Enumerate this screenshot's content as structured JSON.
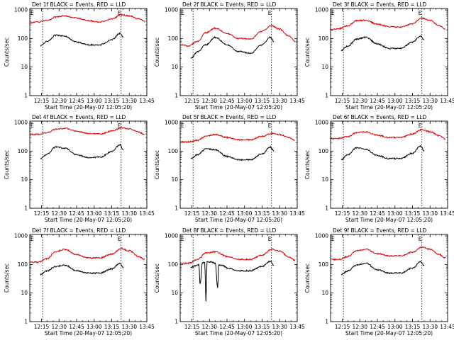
{
  "window": {
    "width": 640,
    "height": 480,
    "background": "#ffffff"
  },
  "colors": {
    "events": "#000000",
    "lld": "#dd0000",
    "axis": "#000000"
  },
  "shared": {
    "xlabel": "Start Time (20-May-07 12:05:20)",
    "ylabel": "Counts/sec",
    "x_ticks": [
      "12:15",
      "12:30",
      "12:45",
      "13:00",
      "13:15",
      "13:30",
      "13:45"
    ],
    "y_ticks": [
      "1",
      "10",
      "100",
      "1000"
    ],
    "x_range_minutes": [
      0,
      100
    ],
    "y_range_log10": [
      0,
      3.05
    ],
    "scale": "log",
    "marker_left": "E",
    "marker_right": "E"
  },
  "chart_data": [
    {
      "type": "line",
      "scale": "log",
      "title": "Det 1f BLACK = Events, RED = LLD",
      "ylabel": "Counts/sec",
      "xlabel": "Start Time (20-May-07 12:05:20)",
      "xticks": [
        "12:15",
        "12:30",
        "12:45",
        "13:00",
        "13:15",
        "13:30",
        "13:45"
      ],
      "yticks": [
        "1",
        "10",
        "100",
        "1000"
      ],
      "markers": {
        "left_label": "E",
        "right_label": "E",
        "dashed_lines_x": [
          "12:16",
          "13:23"
        ]
      },
      "series": [
        {
          "key": "lld",
          "color": "#dd0000",
          "x": [
            "12:05",
            "12:12",
            "12:20",
            "12:27",
            "12:35",
            "12:45",
            "12:55",
            "13:05",
            "13:15",
            "13:23",
            "13:30",
            "13:38",
            "13:43"
          ],
          "values": [
            350,
            380,
            430,
            560,
            620,
            520,
            420,
            380,
            480,
            680,
            620,
            480,
            400
          ]
        },
        {
          "key": "events",
          "color": "#000000",
          "x": [
            "12:14",
            "12:20",
            "12:27",
            "12:35",
            "12:45",
            "12:55",
            "13:05",
            "13:15",
            "13:22",
            "13:25"
          ],
          "values": [
            55,
            80,
            130,
            120,
            75,
            60,
            60,
            90,
            150,
            110
          ]
        }
      ]
    },
    {
      "type": "line",
      "scale": "log",
      "title": "Det 2f BLACK = Events, RED = LLD",
      "ylabel": "Counts/sec",
      "xlabel": "Start Time (20-May-07 12:05:20)",
      "xticks": [
        "12:15",
        "12:30",
        "12:45",
        "13:00",
        "13:15",
        "13:30",
        "13:45"
      ],
      "yticks": [
        "1",
        "10",
        "100",
        "1000"
      ],
      "markers": {
        "left_label": "E",
        "right_label": "E",
        "dashed_lines_x": [
          "12:16",
          "13:23"
        ]
      },
      "series": [
        {
          "key": "lld",
          "color": "#dd0000",
          "x": [
            "12:05",
            "12:12",
            "12:20",
            "12:27",
            "12:35",
            "12:45",
            "12:55",
            "13:05",
            "13:15",
            "13:23",
            "13:30",
            "13:38",
            "13:43"
          ],
          "values": [
            60,
            55,
            80,
            160,
            230,
            150,
            100,
            95,
            180,
            280,
            210,
            120,
            80
          ]
        },
        {
          "key": "events",
          "color": "#000000",
          "x": [
            "12:14",
            "12:20",
            "12:27",
            "12:35",
            "12:45",
            "12:55",
            "13:05",
            "13:15",
            "13:22",
            "13:25"
          ],
          "values": [
            20,
            35,
            60,
            110,
            60,
            35,
            30,
            60,
            110,
            80
          ]
        }
      ]
    },
    {
      "type": "line",
      "scale": "log",
      "title": "Det 3f BLACK = Events, RED = LLD",
      "ylabel": "Counts/sec",
      "xlabel": "Start Time (20-May-07 12:05:20)",
      "xticks": [
        "12:15",
        "12:30",
        "12:45",
        "13:00",
        "13:15",
        "13:30",
        "13:45"
      ],
      "yticks": [
        "1",
        "10",
        "100",
        "1000"
      ],
      "markers": {
        "left_label": "E",
        "right_label": "E",
        "dashed_lines_x": [
          "12:16",
          "13:23"
        ]
      },
      "series": [
        {
          "key": "lld",
          "color": "#dd0000",
          "x": [
            "12:05",
            "12:12",
            "12:20",
            "12:27",
            "12:35",
            "12:45",
            "12:55",
            "13:05",
            "13:15",
            "13:23",
            "13:30",
            "13:38",
            "13:43"
          ],
          "values": [
            200,
            220,
            280,
            420,
            430,
            320,
            260,
            250,
            330,
            520,
            430,
            280,
            210
          ]
        },
        {
          "key": "events",
          "color": "#000000",
          "x": [
            "12:14",
            "12:20",
            "12:27",
            "12:35",
            "12:45",
            "12:55",
            "13:05",
            "13:15",
            "13:22",
            "13:25"
          ],
          "values": [
            38,
            55,
            95,
            110,
            65,
            45,
            45,
            75,
            120,
            90
          ]
        }
      ]
    },
    {
      "type": "line",
      "scale": "log",
      "title": "Det 4f BLACK = Events, RED = LLD",
      "ylabel": "Counts/sec",
      "xlabel": "Start Time (20-May-07 12:05:20)",
      "xticks": [
        "12:15",
        "12:30",
        "12:45",
        "13:00",
        "13:15",
        "13:30",
        "13:45"
      ],
      "yticks": [
        "1",
        "10",
        "100",
        "1000"
      ],
      "markers": {
        "left_label": "E",
        "right_label": "E",
        "dashed_lines_x": [
          "12:16",
          "13:23"
        ]
      },
      "series": [
        {
          "key": "lld",
          "color": "#dd0000",
          "x": [
            "12:05",
            "12:12",
            "12:20",
            "12:27",
            "12:35",
            "12:45",
            "12:55",
            "13:05",
            "13:15",
            "13:23",
            "13:30",
            "13:38",
            "13:43"
          ],
          "values": [
            380,
            390,
            450,
            580,
            620,
            500,
            420,
            400,
            500,
            650,
            600,
            470,
            380
          ]
        },
        {
          "key": "events",
          "color": "#000000",
          "x": [
            "12:14",
            "12:20",
            "12:27",
            "12:35",
            "12:45",
            "12:55",
            "13:05",
            "13:15",
            "13:22",
            "13:25"
          ],
          "values": [
            55,
            80,
            140,
            125,
            75,
            60,
            62,
            95,
            170,
            110
          ]
        }
      ]
    },
    {
      "type": "line",
      "scale": "log",
      "title": "Det 5f BLACK = Events, RED = LLD",
      "ylabel": "Counts/sec",
      "xlabel": "Start Time (20-May-07 12:05:20)",
      "xticks": [
        "12:15",
        "12:30",
        "12:45",
        "13:00",
        "13:15",
        "13:30",
        "13:45"
      ],
      "yticks": [
        "1",
        "10",
        "100",
        "1000"
      ],
      "markers": {
        "left_label": "E",
        "right_label": "E",
        "dashed_lines_x": [
          "12:16",
          "13:23"
        ]
      },
      "series": [
        {
          "key": "lld",
          "color": "#dd0000",
          "x": [
            "12:05",
            "12:12",
            "12:20",
            "12:27",
            "12:35",
            "12:45",
            "12:55",
            "13:05",
            "13:15",
            "13:23",
            "13:30",
            "13:38",
            "13:43"
          ],
          "values": [
            210,
            210,
            240,
            330,
            380,
            300,
            250,
            250,
            330,
            420,
            380,
            300,
            240
          ]
        },
        {
          "key": "events",
          "color": "#000000",
          "x": [
            "12:14",
            "12:20",
            "12:27",
            "12:35",
            "12:45",
            "12:55",
            "13:05",
            "13:15",
            "13:22",
            "13:25"
          ],
          "values": [
            55,
            75,
            120,
            110,
            65,
            50,
            50,
            80,
            140,
            100
          ]
        }
      ]
    },
    {
      "type": "line",
      "scale": "log",
      "title": "Det 6f BLACK = Events, RED = LLD",
      "ylabel": "Counts/sec",
      "xlabel": "Start Time (20-May-07 12:05:20)",
      "xticks": [
        "12:15",
        "12:30",
        "12:45",
        "13:00",
        "13:15",
        "13:30",
        "13:45"
      ],
      "yticks": [
        "1",
        "10",
        "100",
        "1000"
      ],
      "markers": {
        "left_label": "E",
        "right_label": "E",
        "dashed_lines_x": [
          "12:16",
          "13:23"
        ]
      },
      "series": [
        {
          "key": "lld",
          "color": "#dd0000",
          "x": [
            "12:05",
            "12:12",
            "12:20",
            "12:27",
            "12:35",
            "12:45",
            "12:55",
            "13:05",
            "13:15",
            "13:23",
            "13:30",
            "13:38",
            "13:43"
          ],
          "values": [
            270,
            280,
            320,
            440,
            470,
            360,
            300,
            300,
            400,
            560,
            480,
            340,
            270
          ]
        },
        {
          "key": "events",
          "color": "#000000",
          "x": [
            "12:14",
            "12:20",
            "12:27",
            "12:35",
            "12:45",
            "12:55",
            "13:05",
            "13:15",
            "13:22",
            "13:25"
          ],
          "values": [
            50,
            75,
            130,
            115,
            70,
            55,
            55,
            85,
            150,
            100
          ]
        }
      ]
    },
    {
      "type": "line",
      "scale": "log",
      "title": "Det 7f BLACK = Events, RED = LLD",
      "ylabel": "Counts/sec",
      "xlabel": "Start Time (20-May-07 12:05:20)",
      "xticks": [
        "12:15",
        "12:30",
        "12:45",
        "13:00",
        "13:15",
        "13:30",
        "13:45"
      ],
      "yticks": [
        "1",
        "10",
        "100",
        "1000"
      ],
      "markers": {
        "left_label": "E",
        "right_label": "E",
        "dashed_lines_x": [
          "12:16",
          "13:23"
        ]
      },
      "series": [
        {
          "key": "lld",
          "color": "#dd0000",
          "x": [
            "12:05",
            "12:12",
            "12:20",
            "12:27",
            "12:35",
            "12:45",
            "12:55",
            "13:05",
            "13:15",
            "13:23",
            "13:30",
            "13:38",
            "13:43"
          ],
          "values": [
            120,
            120,
            160,
            280,
            340,
            220,
            170,
            170,
            230,
            360,
            300,
            190,
            150
          ]
        },
        {
          "key": "events",
          "color": "#000000",
          "x": [
            "12:14",
            "12:20",
            "12:27",
            "12:35",
            "12:45",
            "12:55",
            "13:05",
            "13:15",
            "13:22",
            "13:25"
          ],
          "values": [
            45,
            60,
            85,
            95,
            60,
            50,
            50,
            70,
            110,
            80
          ]
        }
      ]
    },
    {
      "type": "line",
      "scale": "log",
      "title": "Det 8f BLACK = Events, RED = LLD",
      "ylabel": "Counts/sec",
      "xlabel": "Start Time (20-May-07 12:05:20)",
      "xticks": [
        "12:15",
        "12:30",
        "12:45",
        "13:00",
        "13:15",
        "13:30",
        "13:45"
      ],
      "yticks": [
        "1",
        "10",
        "100",
        "1000"
      ],
      "markers": {
        "left_label": "E",
        "right_label": "E",
        "dashed_lines_x": [
          "12:16",
          "13:23"
        ]
      },
      "series": [
        {
          "key": "lld",
          "color": "#dd0000",
          "x": [
            "12:05",
            "12:12",
            "12:20",
            "12:27",
            "12:35",
            "12:45",
            "12:55",
            "13:05",
            "13:15",
            "13:23",
            "13:30",
            "13:38",
            "13:43"
          ],
          "values": [
            110,
            110,
            150,
            250,
            280,
            190,
            150,
            150,
            210,
            340,
            290,
            180,
            140
          ]
        },
        {
          "key": "events",
          "color": "#000000",
          "x": [
            "12:14",
            "12:20",
            "12:21",
            "12:22",
            "12:24",
            "12:26",
            "12:27",
            "12:28",
            "12:29",
            "12:31",
            "12:35",
            "12:37",
            "12:38",
            "12:39",
            "12:42",
            "12:45",
            "12:55",
            "13:05",
            "13:15",
            "13:22",
            "13:25"
          ],
          "values": [
            80,
            95,
            100,
            20,
            110,
            120,
            5,
            120,
            120,
            125,
            110,
            15,
            100,
            95,
            90,
            75,
            60,
            60,
            85,
            130,
            95
          ]
        }
      ]
    },
    {
      "type": "line",
      "scale": "log",
      "title": "Det 9f BLACK = Events, RED = LLD",
      "ylabel": "Counts/sec",
      "xlabel": "Start Time (20-May-07 12:05:20)",
      "xticks": [
        "12:15",
        "12:30",
        "12:45",
        "13:00",
        "13:15",
        "13:30",
        "13:45"
      ],
      "yticks": [
        "1",
        "10",
        "100",
        "1000"
      ],
      "markers": {
        "left_label": "E",
        "right_label": "E",
        "dashed_lines_x": [
          "12:16",
          "13:23"
        ]
      },
      "series": [
        {
          "key": "lld",
          "color": "#dd0000",
          "x": [
            "12:05",
            "12:12",
            "12:20",
            "12:27",
            "12:35",
            "12:45",
            "12:55",
            "13:05",
            "13:15",
            "13:23",
            "13:30",
            "13:38",
            "13:43"
          ],
          "values": [
            150,
            150,
            190,
            300,
            340,
            240,
            200,
            200,
            270,
            400,
            340,
            220,
            170
          ]
        },
        {
          "key": "events",
          "color": "#000000",
          "x": [
            "12:14",
            "12:20",
            "12:27",
            "12:35",
            "12:45",
            "12:55",
            "13:05",
            "13:15",
            "13:22",
            "13:25"
          ],
          "values": [
            45,
            60,
            95,
            110,
            65,
            50,
            50,
            75,
            125,
            90
          ]
        }
      ]
    }
  ]
}
